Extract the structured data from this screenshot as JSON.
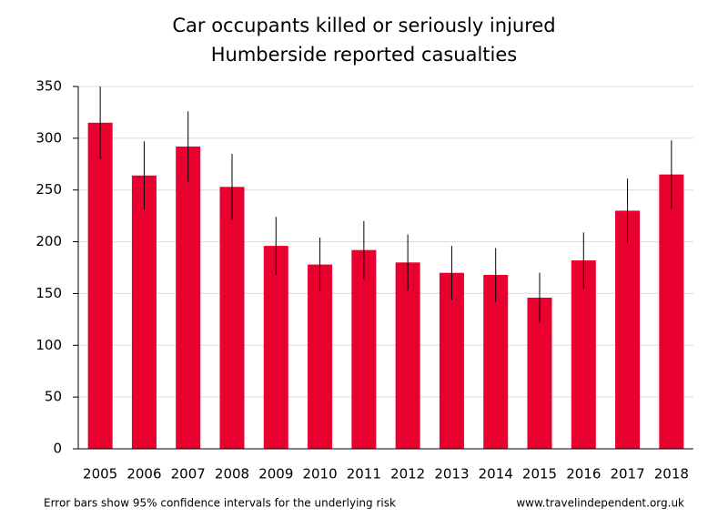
{
  "chart_data": {
    "type": "bar",
    "title": "Car occupants killed or seriously injured",
    "subtitle": "Humberside reported casualties",
    "categories": [
      "2005",
      "2006",
      "2007",
      "2008",
      "2009",
      "2010",
      "2011",
      "2012",
      "2013",
      "2014",
      "2015",
      "2016",
      "2017",
      "2018"
    ],
    "values": [
      315,
      264,
      292,
      253,
      196,
      178,
      192,
      180,
      170,
      168,
      146,
      182,
      230,
      265
    ],
    "errors": [
      35,
      33,
      34,
      32,
      28,
      26,
      28,
      27,
      26,
      26,
      24,
      27,
      31,
      33
    ],
    "color": "#e8002f",
    "ylim": [
      0,
      350
    ],
    "yticks": [
      0,
      50,
      100,
      150,
      200,
      250,
      300,
      350
    ],
    "grid": true,
    "footnote": "Error bars show 95% confidence intervals for the underlying risk",
    "source": "www.travelindependent.org.uk"
  }
}
